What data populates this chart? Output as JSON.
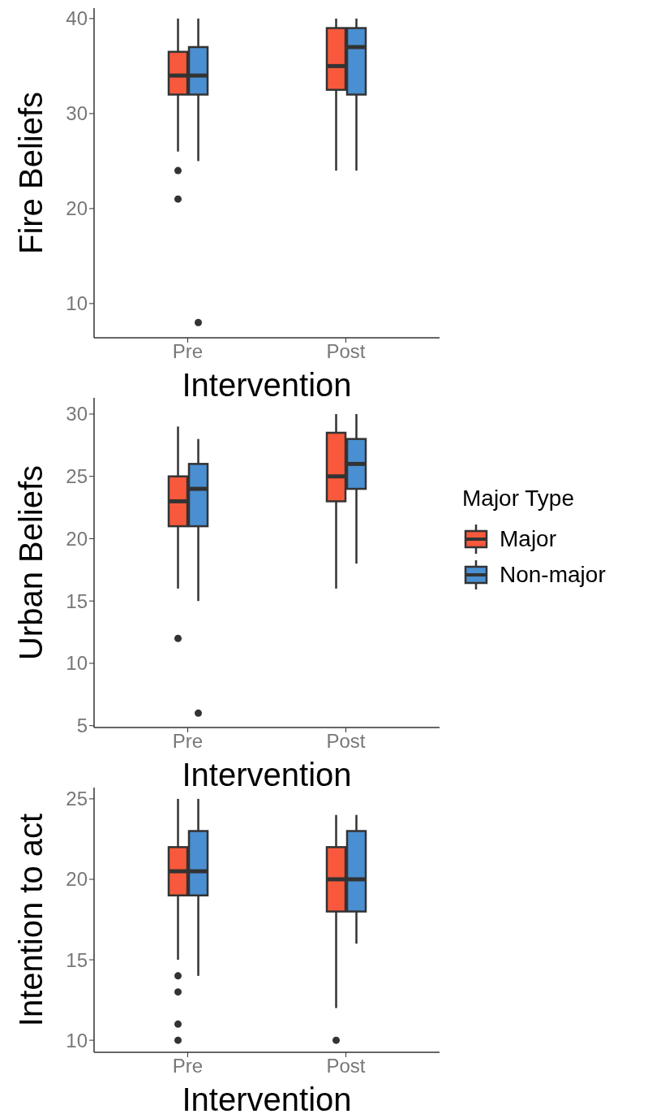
{
  "chart_data": [
    {
      "type": "box",
      "categories": [
        "Pre",
        "Post"
      ],
      "xlabel": "Intervention",
      "ylabel": "Fire Beliefs",
      "ylim": [
        6.4,
        41.1
      ],
      "yticks": [
        10,
        20,
        30,
        40
      ],
      "legend": false,
      "series": [
        {
          "color": "#f8593c",
          "boxes": [
            {
              "low": 26,
              "q1": 32,
              "median": 34,
              "q3": 36.5,
              "high": 40,
              "outliers": [
                24,
                21
              ]
            },
            {
              "low": 24,
              "q1": 32.5,
              "median": 35,
              "q3": 39,
              "high": 40
            }
          ]
        },
        {
          "color": "#4a8fd1",
          "boxes": [
            {
              "low": 25,
              "q1": 32,
              "median": 34,
              "q3": 37,
              "high": 40,
              "outliers": [
                8
              ]
            },
            {
              "low": 24,
              "q1": 32,
              "median": 37,
              "q3": 39,
              "high": 40
            }
          ]
        }
      ]
    },
    {
      "type": "box",
      "categories": [
        "Pre",
        "Post"
      ],
      "xlabel": "Intervention",
      "ylabel": "Urban Beliefs",
      "ylim": [
        4.85,
        31.3
      ],
      "yticks": [
        5,
        10,
        15,
        20,
        25,
        30
      ],
      "legend": "right",
      "legend_title": "Major Type",
      "series": [
        {
          "name": "Major",
          "color": "#f8593c",
          "boxes": [
            {
              "low": 16,
              "q1": 21,
              "median": 23,
              "q3": 25,
              "high": 29,
              "outliers": [
                12
              ]
            },
            {
              "low": 16,
              "q1": 23,
              "median": 25,
              "q3": 28.5,
              "high": 30
            }
          ]
        },
        {
          "name": "Non-major",
          "color": "#4a8fd1",
          "boxes": [
            {
              "low": 15,
              "q1": 21,
              "median": 24,
              "q3": 26,
              "high": 28,
              "outliers": [
                6
              ]
            },
            {
              "low": 18,
              "q1": 24,
              "median": 26,
              "q3": 28,
              "high": 30
            }
          ]
        }
      ]
    },
    {
      "type": "box",
      "categories": [
        "Pre",
        "Post"
      ],
      "xlabel": "Intervention",
      "ylabel": "Intention to act",
      "ylim": [
        9.25,
        25.7
      ],
      "yticks": [
        10,
        15,
        20,
        25
      ],
      "legend": false,
      "series": [
        {
          "color": "#f8593c",
          "boxes": [
            {
              "low": 15,
              "q1": 19,
              "median": 20.5,
              "q3": 22,
              "high": 25,
              "outliers": [
                14,
                13,
                11,
                10
              ]
            },
            {
              "low": 12,
              "q1": 18,
              "median": 20,
              "q3": 22,
              "high": 24,
              "outliers": [
                10
              ]
            }
          ]
        },
        {
          "color": "#4a8fd1",
          "boxes": [
            {
              "low": 14,
              "q1": 19,
              "median": 20.5,
              "q3": 23,
              "high": 25
            },
            {
              "low": 16,
              "q1": 18,
              "median": 20,
              "q3": 23,
              "high": 24
            }
          ]
        }
      ]
    }
  ]
}
